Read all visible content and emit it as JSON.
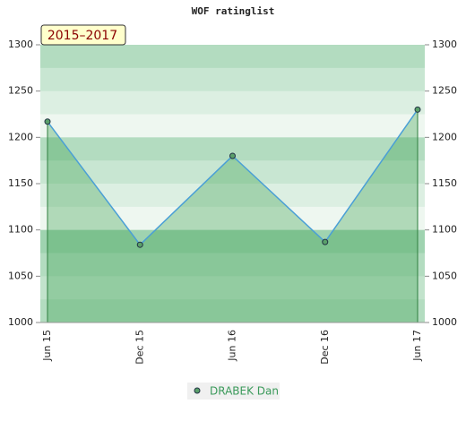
{
  "chart_data": {
    "type": "line",
    "title": "WOF ratinglist",
    "annotation": "2015–2017",
    "categories": [
      "Jun 15",
      "Dec 15",
      "Jun 16",
      "Dec 16",
      "Jun 17"
    ],
    "series": [
      {
        "name": "DRABEK Dan",
        "color": "#4a9fd6",
        "values": [
          1217,
          1084,
          1180,
          1087,
          1230
        ]
      }
    ],
    "ylim": [
      1000,
      1300
    ],
    "yticks": [
      1000,
      1050,
      1100,
      1150,
      1200,
      1250,
      1300
    ],
    "y2lim": [
      1000,
      1300
    ],
    "y2ticks": [
      1000,
      1050,
      1100,
      1150,
      1200,
      1250,
      1300
    ],
    "legend": "bottom"
  }
}
